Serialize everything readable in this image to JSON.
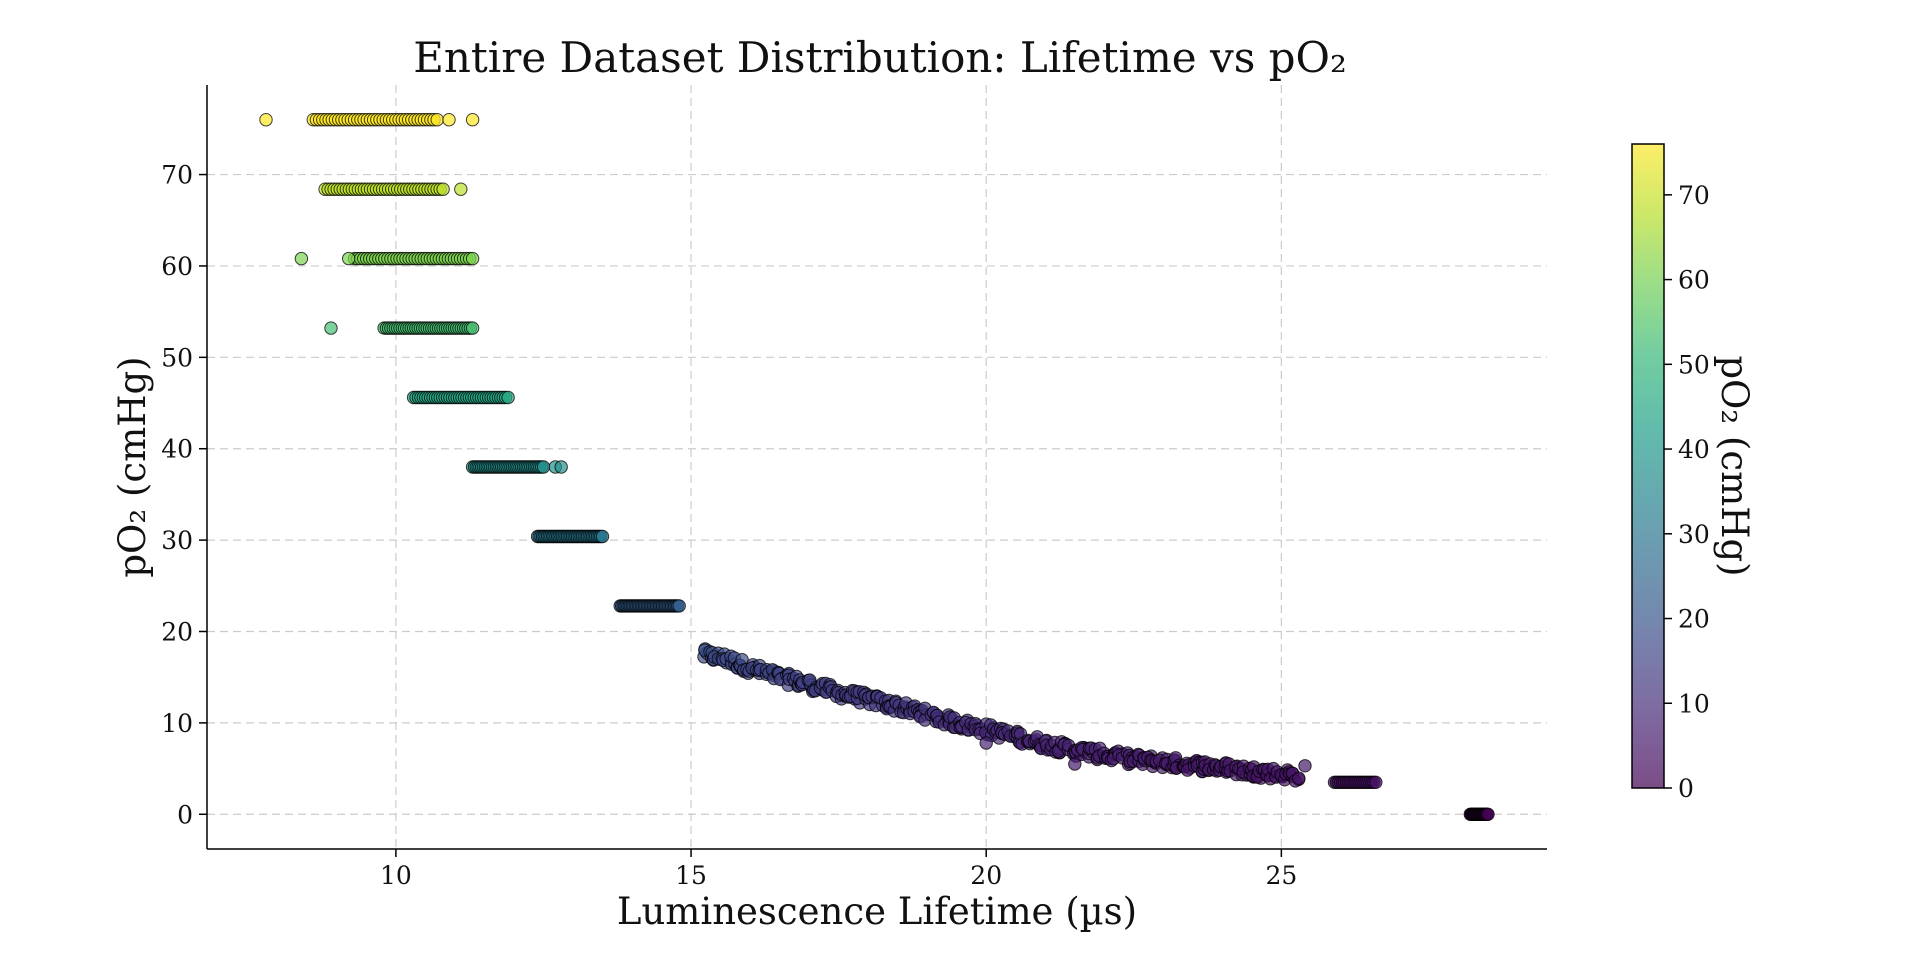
{
  "chart_data": {
    "type": "scatter",
    "title": "Entire Dataset Distribution: Lifetime vs pO₂",
    "xlabel": "Luminescence Lifetime (µs)",
    "ylabel": "pO₂ (cmHg)",
    "xlim": [
      6.8,
      29.5
    ],
    "ylim": [
      -3.8,
      79.8
    ],
    "xticks": [
      10,
      15,
      20,
      25
    ],
    "yticks": [
      0,
      10,
      20,
      30,
      40,
      50,
      60,
      70
    ],
    "grid": true,
    "colormap": "viridis",
    "colorbar": {
      "label": "pO₂ (cmHg)",
      "range": [
        0,
        76
      ],
      "ticks": [
        0,
        10,
        20,
        30,
        40,
        50,
        60,
        70
      ]
    },
    "marker_edge_color": "#000000",
    "marker_alpha": 0.7,
    "levels": [
      {
        "po2": 76.0,
        "x_min": 8.6,
        "x_max": 10.7,
        "outliers": [
          7.8,
          10.9,
          11.3
        ]
      },
      {
        "po2": 68.4,
        "x_min": 8.8,
        "x_max": 10.8,
        "outliers": [
          11.1
        ]
      },
      {
        "po2": 60.8,
        "x_min": 9.3,
        "x_max": 11.3,
        "outliers": [
          8.4,
          9.2
        ]
      },
      {
        "po2": 53.2,
        "x_min": 9.8,
        "x_max": 11.3,
        "outliers": [
          8.9
        ]
      },
      {
        "po2": 45.6,
        "x_min": 10.3,
        "x_max": 11.9,
        "outliers": []
      },
      {
        "po2": 38.0,
        "x_min": 11.3,
        "x_max": 12.5,
        "outliers": [
          12.7,
          12.8
        ]
      },
      {
        "po2": 30.4,
        "x_min": 12.4,
        "x_max": 13.5,
        "outliers": []
      },
      {
        "po2": 22.8,
        "x_min": 13.8,
        "x_max": 14.8,
        "outliers": []
      }
    ],
    "curve": [
      [
        15.2,
        17.5
      ],
      [
        15.6,
        17.0
      ],
      [
        16.0,
        16.0
      ],
      [
        16.5,
        15.0
      ],
      [
        17.0,
        14.2
      ],
      [
        17.5,
        13.3
      ],
      [
        18.0,
        12.6
      ],
      [
        18.5,
        11.8
      ],
      [
        19.0,
        10.9
      ],
      [
        19.5,
        10.0
      ],
      [
        20.0,
        9.3
      ],
      [
        20.5,
        8.5
      ],
      [
        21.0,
        7.7
      ],
      [
        21.5,
        7.0
      ],
      [
        22.0,
        6.5
      ],
      [
        22.5,
        6.0
      ],
      [
        23.0,
        5.7
      ],
      [
        23.5,
        5.4
      ],
      [
        24.0,
        5.1
      ],
      [
        24.5,
        4.7
      ],
      [
        25.0,
        4.4
      ],
      [
        25.3,
        4.2
      ]
    ],
    "curve_outliers": [
      [
        20.0,
        7.8
      ],
      [
        21.5,
        5.5
      ],
      [
        25.4,
        5.3
      ]
    ],
    "tail_clusters": [
      {
        "po2": 3.5,
        "x_min": 25.9,
        "x_max": 26.6
      },
      {
        "po2": 0.0,
        "x_min": 28.2,
        "x_max": 28.5
      }
    ]
  }
}
